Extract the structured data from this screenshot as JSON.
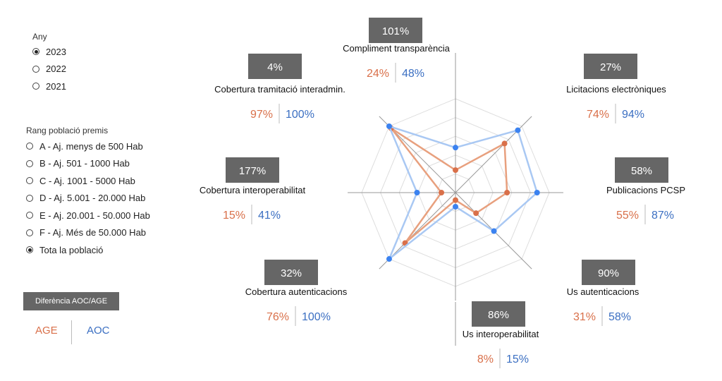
{
  "filters": {
    "year": {
      "title": "Any",
      "options": [
        {
          "label": "2023",
          "selected": true
        },
        {
          "label": "2022",
          "selected": false
        },
        {
          "label": "2021",
          "selected": false
        }
      ]
    },
    "population": {
      "title": "Rang població premis",
      "options": [
        {
          "label": "A - Aj. menys de 500 Hab",
          "selected": false
        },
        {
          "label": "B - Aj. 501 - 1000 Hab",
          "selected": false
        },
        {
          "label": "C - Aj. 1001 - 5000 Hab",
          "selected": false
        },
        {
          "label": "D - Aj. 5.001 - 20.000 Hab",
          "selected": false
        },
        {
          "label": "E - Aj. 20.001 - 50.000 Hab",
          "selected": false
        },
        {
          "label": "F - Aj. Més de 50.000 Hab",
          "selected": false
        },
        {
          "label": "Tota la població",
          "selected": true
        }
      ]
    }
  },
  "legend": {
    "title": "Diferència AOC/AGE",
    "age_label": "AGE",
    "aoc_label": "AOC",
    "age_color": "#d9704a",
    "aoc_color": "#3b6fc2"
  },
  "chart_data": {
    "type": "radar",
    "axes": [
      {
        "label": "Compliment transparència",
        "diff": "101%",
        "age": "24%",
        "aoc": "48%"
      },
      {
        "label": "Licitacions electròniques",
        "diff": "27%",
        "age": "74%",
        "aoc": "94%"
      },
      {
        "label": "Publicacions PCSP",
        "diff": "58%",
        "age": "55%",
        "aoc": "87%"
      },
      {
        "label": "Us autenticacions",
        "diff": "90%",
        "age": "31%",
        "aoc": "58%"
      },
      {
        "label": "Us interoperabilitat",
        "diff": "86%",
        "age": "8%",
        "aoc": "15%"
      },
      {
        "label": "Cobertura autenticacions",
        "diff": "32%",
        "age": "76%",
        "aoc": "100%"
      },
      {
        "label": "Cobertura interoperabilitat",
        "diff": "177%",
        "age": "15%",
        "aoc": "41%"
      },
      {
        "label": "Cobertura tramitació interadmin.",
        "diff": "4%",
        "age": "97%",
        "aoc": "100%"
      }
    ],
    "series": [
      {
        "name": "AGE",
        "color": "#e8a07e",
        "marker_color": "#d9704a",
        "values": [
          24,
          74,
          55,
          31,
          8,
          76,
          15,
          97
        ]
      },
      {
        "name": "AOC",
        "color": "#a9c8f3",
        "marker_color": "#3b82f0",
        "values": [
          48,
          94,
          87,
          58,
          15,
          100,
          41,
          100
        ]
      }
    ],
    "range": [
      0,
      100
    ],
    "grid_levels": 5
  }
}
